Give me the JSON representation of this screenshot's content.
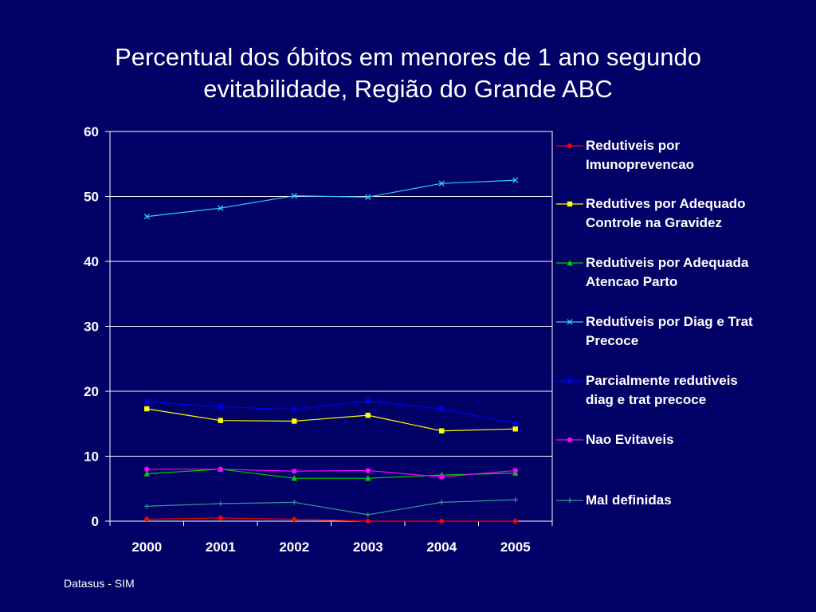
{
  "page": {
    "title_line1": "Percentual dos óbitos em menores de 1 ano segundo",
    "title_line2": "evitabilidade, Região do Grande ABC",
    "source": "Datasus - SIM"
  },
  "chart_data": {
    "type": "line",
    "title": "Percentual dos óbitos em menores de 1 ano segundo evitabilidade, Região do Grande ABC",
    "categories": [
      "2000",
      "2001",
      "2002",
      "2003",
      "2004",
      "2005"
    ],
    "ylim": [
      0,
      60
    ],
    "yticks": [
      "0",
      "10",
      "20",
      "30",
      "40",
      "50",
      "60"
    ],
    "grid": true,
    "legend": "right",
    "series": [
      {
        "name": "Redutiveis por Imunoprevencao",
        "values": [
          0.3,
          0.5,
          0.3,
          0.0,
          0.0,
          0.0
        ],
        "color": "#ff0000",
        "marker": "diamond"
      },
      {
        "name": "Redutives por Adequado Controle na Gravidez",
        "values": [
          17.3,
          15.5,
          15.4,
          16.3,
          13.9,
          14.2
        ],
        "color": "#ffff00",
        "marker": "square"
      },
      {
        "name": "Redutiveis por Adequada Atencao Parto",
        "values": [
          7.3,
          8.0,
          6.6,
          6.6,
          7.1,
          7.4
        ],
        "color": "#00cc00",
        "marker": "triangle"
      },
      {
        "name": "Redutiveis por Diag e Trat Precoce",
        "values": [
          46.9,
          48.2,
          50.1,
          49.9,
          52.0,
          52.5
        ],
        "color": "#33ccff",
        "marker": "x"
      },
      {
        "name": "Parcialmente redutiveis diag e trat precoce",
        "values": [
          18.4,
          17.6,
          17.2,
          18.5,
          17.3,
          15.0
        ],
        "color": "#0000ff",
        "marker": "star"
      },
      {
        "name": "Nao Evitaveis",
        "values": [
          8.0,
          8.0,
          7.7,
          7.8,
          6.8,
          7.8
        ],
        "color": "#ff00ff",
        "marker": "circle"
      },
      {
        "name": "Mal definidas",
        "values": [
          2.3,
          2.7,
          2.9,
          1.0,
          2.9,
          3.3
        ],
        "color": "#339999",
        "marker": "plus"
      }
    ]
  }
}
